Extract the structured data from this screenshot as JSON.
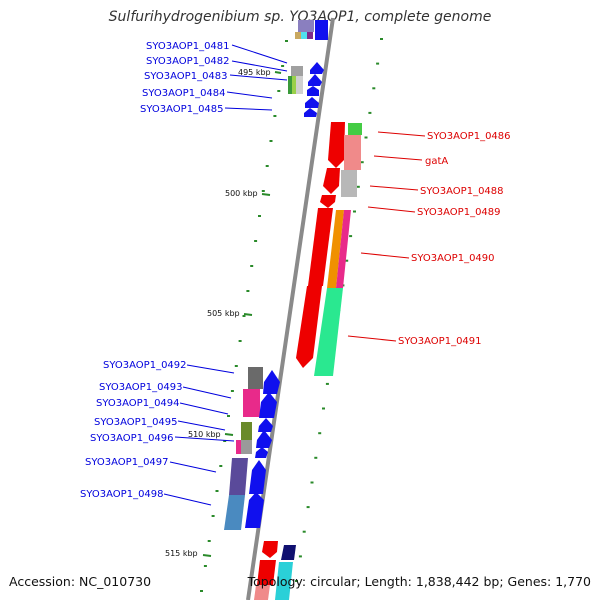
{
  "title": "Sulfurihydrogenibium sp. YO3AOP1, complete genome",
  "accession": "Accession: NC_010730",
  "topology": "Topology: circular; Length: 1,838,442 bp; Genes: 1,770",
  "colors": {
    "forward_label": "#0000dd",
    "reverse_label": "#dd0000",
    "backbone": "#8a8a8a",
    "tick": "#2a8a2a"
  },
  "ticks": [
    "495 kbp",
    "500 kbp",
    "505 kbp",
    "510 kbp",
    "515 kbp"
  ],
  "genes_left": [
    "SYO3AOP1_0481",
    "SYO3AOP1_0482",
    "SYO3AOP1_0483",
    "SYO3AOP1_0484",
    "SYO3AOP1_0485",
    "SYO3AOP1_0492",
    "SYO3AOP1_0493",
    "SYO3AOP1_0494",
    "SYO3AOP1_0495",
    "SYO3AOP1_0496",
    "SYO3AOP1_0497",
    "SYO3AOP1_0498"
  ],
  "genes_right": [
    "SYO3AOP1_0486",
    "gatA",
    "SYO3AOP1_0488",
    "SYO3AOP1_0489",
    "SYO3AOP1_0490",
    "SYO3AOP1_0491"
  ]
}
